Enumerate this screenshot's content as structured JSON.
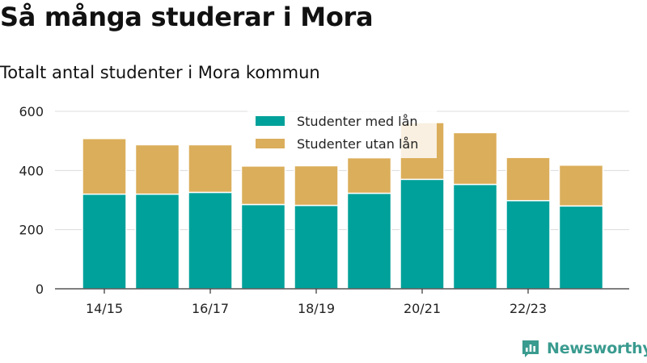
{
  "header": {
    "title": "Så många studerar i Mora",
    "subtitle": "Totalt antal studenter i Mora kommun"
  },
  "brand": {
    "name": "Newsworthy",
    "icon": "bar-chart-speech-bubble-icon",
    "color": "#3a9b8f"
  },
  "chart_data": {
    "type": "bar",
    "stacked": true,
    "categories": [
      "14/15",
      "15/16",
      "16/17",
      "17/18",
      "18/19",
      "19/20",
      "20/21",
      "21/22",
      "22/23",
      "23/24"
    ],
    "x_tick_labels": [
      "14/15",
      "16/17",
      "18/19",
      "20/21",
      "22/23"
    ],
    "series": [
      {
        "name": "Studenter med lån",
        "color": "#00a19a",
        "values": [
          320,
          320,
          326,
          285,
          282,
          323,
          370,
          353,
          298,
          280
        ]
      },
      {
        "name": "Studenter utan lån",
        "color": "#dbae5b",
        "values": [
          188,
          167,
          161,
          130,
          134,
          120,
          192,
          175,
          146,
          138
        ]
      }
    ],
    "ylim": [
      0,
      600
    ],
    "yticks": [
      0,
      200,
      400,
      600
    ],
    "xlabel": "",
    "ylabel": "",
    "grid": true,
    "legend": "top-center"
  }
}
